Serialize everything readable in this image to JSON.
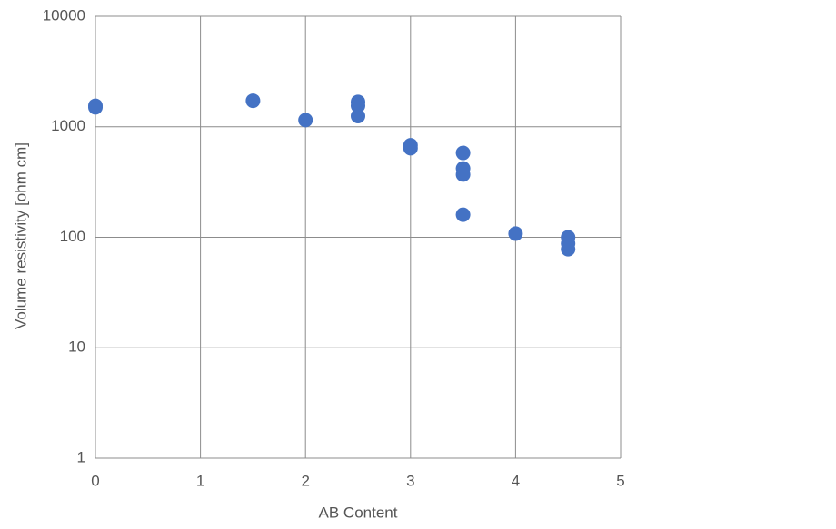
{
  "chart_data": {
    "type": "scatter",
    "x_label": "AB Content",
    "y_label": "Volume resistivity [ohm cm]",
    "x": [
      0,
      0,
      1.5,
      2,
      2.5,
      2.5,
      2.5,
      3,
      3,
      3.5,
      3.5,
      3.5,
      3.5,
      4,
      4.5,
      4.5,
      4.5
    ],
    "values": [
      1500,
      1550,
      1720,
      1150,
      1680,
      1550,
      1250,
      680,
      640,
      580,
      420,
      370,
      160,
      108,
      100,
      88,
      78
    ],
    "color": "#4472c4",
    "xlim": [
      0,
      5
    ],
    "xticks": [
      0,
      1,
      2,
      3,
      4,
      5
    ],
    "ylim": [
      1,
      10000
    ],
    "yticks": [
      1,
      10,
      100,
      1000,
      10000
    ],
    "log_y": true,
    "grid": true
  }
}
